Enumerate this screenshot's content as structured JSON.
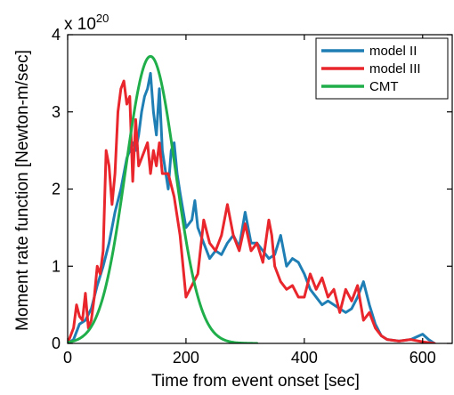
{
  "chart_data": {
    "type": "line",
    "xlabel": "Time from event onset [sec]",
    "ylabel": "Moment rate function [Newton-m/sec]",
    "y_multiplier": {
      "base": "x 10",
      "exponent": "20"
    },
    "xlim": [
      0,
      650
    ],
    "ylim": [
      0,
      4
    ],
    "x_ticks": [
      0,
      200,
      400,
      600
    ],
    "y_ticks": [
      0,
      1,
      2,
      3,
      4
    ],
    "legend_position": "top-right",
    "series": [
      {
        "name": "model II",
        "color": "#1f7fb5",
        "x": [
          0,
          10,
          20,
          30,
          40,
          50,
          60,
          70,
          80,
          90,
          100,
          110,
          115,
          120,
          125,
          130,
          135,
          140,
          145,
          150,
          155,
          160,
          170,
          175,
          180,
          185,
          190,
          200,
          210,
          215,
          220,
          230,
          240,
          250,
          260,
          270,
          280,
          290,
          300,
          310,
          320,
          330,
          340,
          350,
          360,
          370,
          380,
          390,
          400,
          410,
          420,
          430,
          440,
          450,
          460,
          470,
          480,
          490,
          500,
          510,
          520,
          530,
          540,
          560,
          580,
          600,
          610,
          620
        ],
        "values": [
          0,
          0.05,
          0.25,
          0.3,
          0.45,
          0.75,
          1.0,
          1.3,
          1.7,
          2.0,
          2.4,
          2.6,
          2.5,
          2.7,
          3.0,
          3.2,
          3.3,
          3.5,
          3.0,
          2.7,
          3.3,
          2.5,
          2.0,
          2.5,
          2.6,
          2.2,
          1.95,
          1.5,
          1.6,
          1.85,
          1.5,
          1.3,
          1.1,
          1.2,
          1.15,
          1.3,
          1.4,
          1.25,
          1.7,
          1.3,
          1.3,
          1.2,
          1.1,
          1.15,
          1.4,
          1.0,
          1.1,
          1.05,
          0.9,
          0.7,
          0.6,
          0.5,
          0.55,
          0.5,
          0.45,
          0.4,
          0.45,
          0.6,
          0.8,
          0.5,
          0.25,
          0.1,
          0.05,
          0.03,
          0.05,
          0.12,
          0.05,
          0
        ]
      },
      {
        "name": "model III",
        "color": "#e8262c",
        "x": [
          0,
          10,
          15,
          20,
          25,
          30,
          35,
          40,
          45,
          50,
          55,
          60,
          65,
          70,
          75,
          80,
          85,
          90,
          95,
          100,
          105,
          110,
          115,
          120,
          125,
          130,
          135,
          140,
          145,
          150,
          155,
          160,
          170,
          180,
          190,
          200,
          210,
          220,
          230,
          240,
          250,
          260,
          270,
          280,
          290,
          300,
          310,
          320,
          330,
          340,
          345,
          350,
          360,
          370,
          380,
          390,
          400,
          410,
          420,
          430,
          440,
          450,
          460,
          470,
          480,
          490,
          500,
          510,
          520,
          530,
          540,
          560,
          580,
          600,
          620
        ],
        "values": [
          0,
          0.2,
          0.5,
          0.35,
          0.3,
          0.65,
          0.2,
          0.3,
          0.6,
          1.0,
          0.9,
          1.2,
          2.5,
          2.3,
          1.8,
          2.2,
          3.0,
          3.3,
          3.4,
          3.1,
          3.2,
          2.1,
          2.9,
          2.3,
          2.4,
          2.5,
          2.6,
          2.2,
          2.5,
          2.3,
          2.6,
          2.2,
          2.2,
          1.9,
          1.4,
          0.6,
          0.75,
          0.9,
          1.6,
          1.3,
          1.2,
          1.4,
          1.8,
          1.4,
          1.2,
          1.55,
          1.2,
          1.3,
          1.05,
          1.6,
          1.4,
          1.0,
          0.8,
          0.7,
          0.75,
          0.6,
          0.6,
          0.9,
          0.7,
          0.85,
          0.6,
          0.7,
          0.4,
          0.7,
          0.55,
          0.75,
          0.3,
          0.4,
          0.2,
          0.1,
          0.05,
          0.03,
          0.05,
          0.02,
          0
        ]
      },
      {
        "name": "CMT",
        "color": "#1fae4a",
        "type": "gaussian",
        "amplitude": 3.72,
        "center": 140,
        "sigma": 42,
        "x_range": [
          0,
          320
        ]
      }
    ]
  }
}
